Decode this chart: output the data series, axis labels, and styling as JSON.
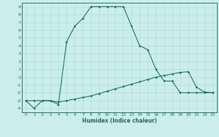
{
  "xlabel": "Humidex (Indice chaleur)",
  "bg_color": "#cceee8",
  "line_color": "#1a6b5a",
  "grid_color": "#aadddd",
  "xlim": [
    -0.5,
    23.5
  ],
  "ylim": [
    -4.5,
    9.5
  ],
  "xticks": [
    0,
    1,
    2,
    3,
    4,
    5,
    6,
    7,
    8,
    9,
    10,
    11,
    12,
    13,
    14,
    15,
    16,
    17,
    18,
    19,
    20,
    21,
    22,
    23
  ],
  "yticks": [
    -4,
    -3,
    -2,
    -1,
    0,
    1,
    2,
    3,
    4,
    5,
    6,
    7,
    8,
    9
  ],
  "line1_x": [
    0,
    1,
    2,
    3,
    4,
    5,
    6,
    7,
    8,
    9,
    10,
    11,
    12,
    13,
    14,
    15,
    16,
    17,
    18,
    19,
    20,
    21,
    22,
    23
  ],
  "line1_y": [
    -3,
    -4,
    -3,
    -3,
    -3.5,
    4.5,
    6.5,
    7.5,
    9,
    9,
    9,
    9,
    9,
    6.5,
    4.0,
    3.5,
    1.0,
    -0.5,
    -0.5,
    -2,
    -2,
    -2,
    -2,
    -2
  ],
  "line2_x": [
    0,
    1,
    2,
    3,
    4,
    5,
    6,
    7,
    8,
    9,
    10,
    11,
    12,
    13,
    14,
    15,
    16,
    17,
    18,
    19,
    20,
    21,
    22,
    23
  ],
  "line2_y": [
    -3,
    -3,
    -3,
    -3,
    -3.2,
    -3.0,
    -2.8,
    -2.6,
    -2.4,
    -2.1,
    -1.8,
    -1.5,
    -1.2,
    -0.9,
    -0.6,
    -0.3,
    0.0,
    0.2,
    0.4,
    0.6,
    0.7,
    -1.3,
    -1.9,
    -2.0
  ]
}
